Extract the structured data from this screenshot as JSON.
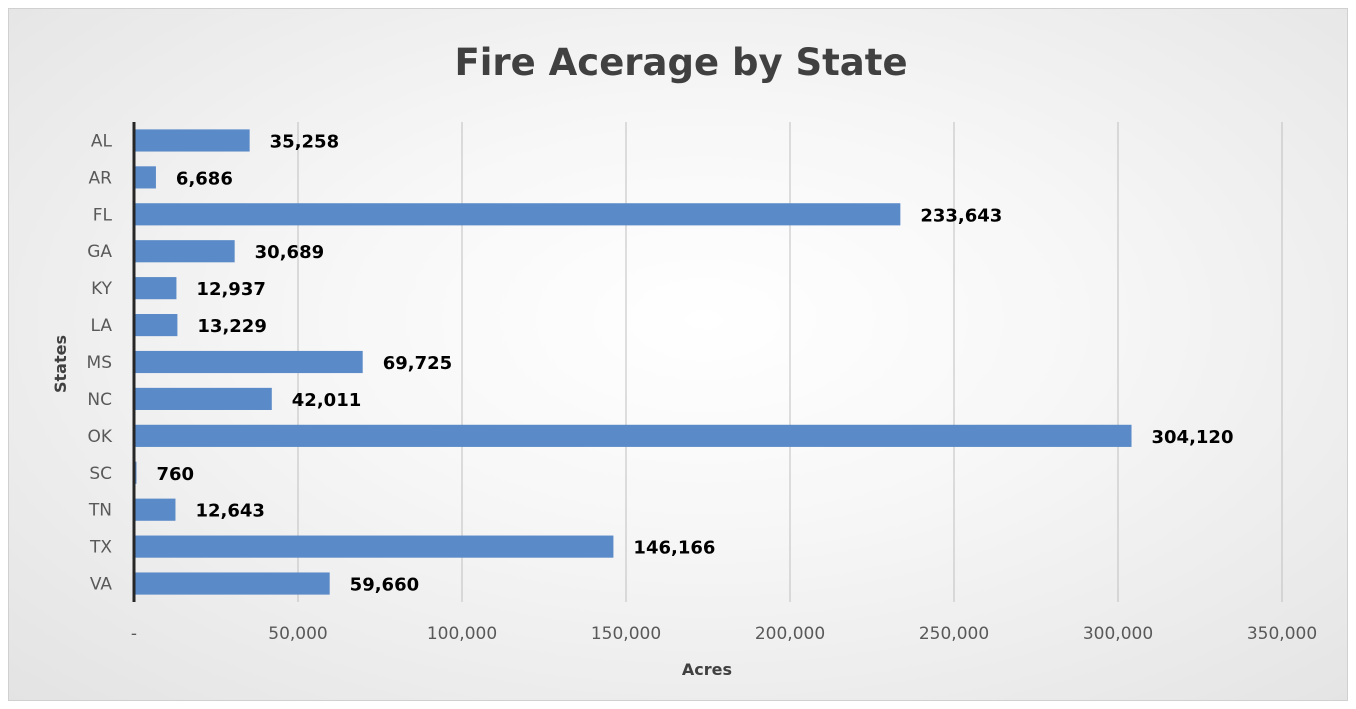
{
  "chart_data": {
    "type": "bar",
    "orientation": "horizontal",
    "title": "Fire Acerage by State",
    "xlabel": "Acres",
    "ylabel": "States",
    "categories": [
      "AL",
      "AR",
      "FL",
      "GA",
      "KY",
      "LA",
      "MS",
      "NC",
      "OK",
      "SC",
      "TN",
      "TX",
      "VA"
    ],
    "values": [
      35258,
      6686,
      233643,
      30689,
      12937,
      13229,
      69725,
      42011,
      304120,
      760,
      12643,
      146166,
      59660
    ],
    "data_labels": [
      "35,258",
      "6,686",
      "233,643",
      "30,689",
      "12,937",
      "13,229",
      "69,725",
      "42,011",
      "304,120",
      "760",
      "12,643",
      "146,166",
      "59,660"
    ],
    "xlim": [
      0,
      350000
    ],
    "x_ticks": [
      0,
      50000,
      100000,
      150000,
      200000,
      250000,
      300000,
      350000
    ],
    "x_tick_labels": [
      "-",
      "50,000",
      "100,000",
      "150,000",
      "200,000",
      "250,000",
      "300,000",
      "350,000"
    ],
    "grid": true,
    "legend": "none",
    "bar_color": "#5b8ac8"
  }
}
